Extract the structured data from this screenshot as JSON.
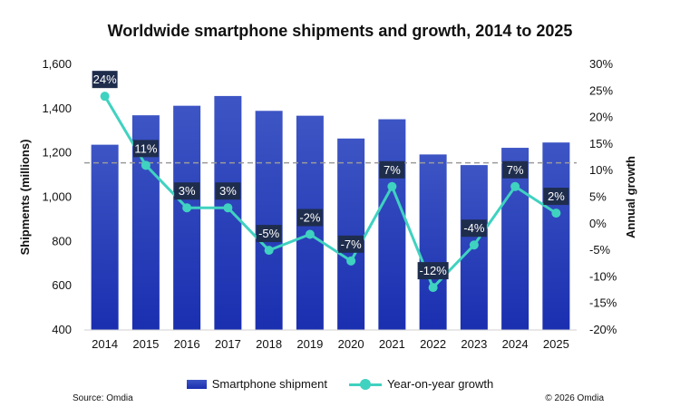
{
  "chart_data": {
    "type": "bar",
    "title": "Worldwide smartphone shipments and growth, 2014 to 2025",
    "categories": [
      "2014",
      "2015",
      "2016",
      "2017",
      "2018",
      "2019",
      "2020",
      "2021",
      "2022",
      "2023",
      "2024",
      "2025"
    ],
    "series": [
      {
        "name": "Smartphone shipment",
        "type": "bar",
        "axis": "left",
        "values": [
          1237,
          1370,
          1413,
          1457,
          1390,
          1368,
          1265,
          1352,
          1193,
          1145,
          1223,
          1247
        ]
      },
      {
        "name": "Year-on-year growth",
        "type": "line",
        "axis": "right",
        "values": [
          24,
          11,
          3,
          3,
          -5,
          -2,
          -7,
          7,
          -12,
          -4,
          7,
          2
        ],
        "labels": [
          "24%",
          "11%",
          "3%",
          "3%",
          "-5%",
          "-2%",
          "-7%",
          "7%",
          "-12%",
          "-4%",
          "7%",
          "2%"
        ]
      }
    ],
    "ylabel": "Shipments (millions)",
    "y2label": "Annual growth",
    "ylim": [
      400,
      1600
    ],
    "yticks": [
      "400",
      "600",
      "800",
      "1,000",
      "1,200",
      "1,400",
      "1,600"
    ],
    "y2lim": [
      -20,
      30
    ],
    "y2ticks": [
      "-20%",
      "-15%",
      "-10%",
      "-5%",
      "0%",
      "5%",
      "10%",
      "15%",
      "20%",
      "25%",
      "30%"
    ],
    "reference_line": {
      "axis": "left",
      "value": 1155,
      "style": "dashed"
    },
    "legend_position": "bottom",
    "grid": false,
    "colors": {
      "bar_top": "#3d55c4",
      "bar_bottom": "#1a2fb0",
      "line": "#3fd2c0",
      "label_bg": "#1f2d4d",
      "reference": "#9a9a9a"
    }
  },
  "footer": {
    "source": "Source: Omdia",
    "copyright": "© 2026 Omdia"
  }
}
